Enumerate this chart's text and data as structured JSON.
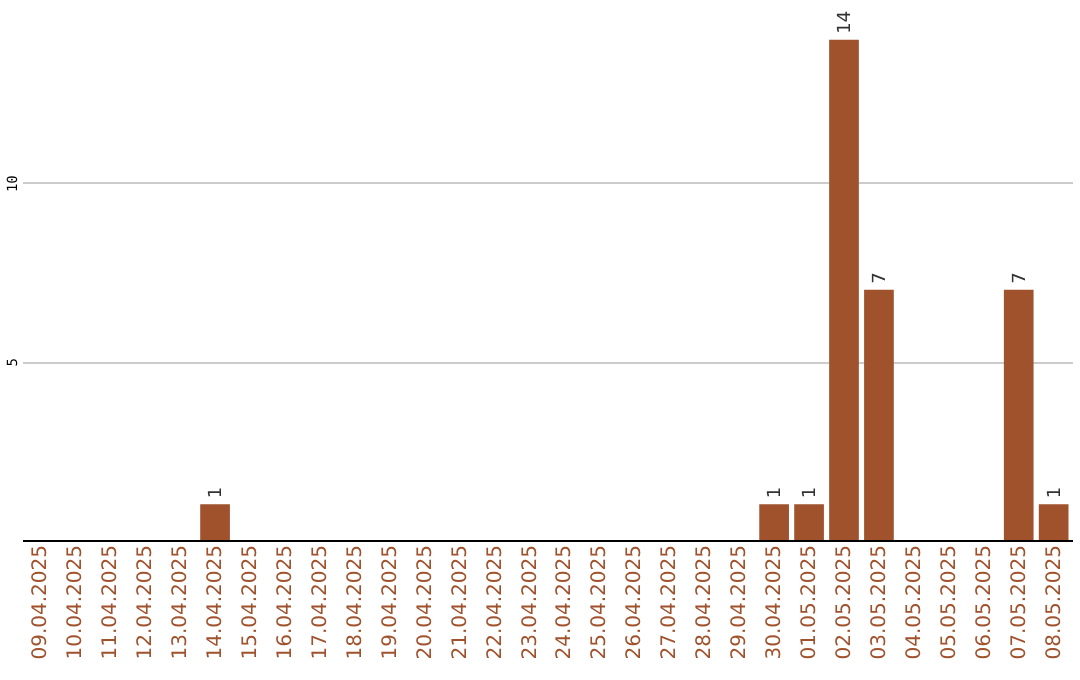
{
  "chart_data": {
    "type": "bar",
    "categories": [
      "09.04.2025",
      "10.04.2025",
      "11.04.2025",
      "12.04.2025",
      "13.04.2025",
      "14.04.2025",
      "15.04.2025",
      "16.04.2025",
      "17.04.2025",
      "18.04.2025",
      "19.04.2025",
      "20.04.2025",
      "21.04.2025",
      "22.04.2025",
      "23.04.2025",
      "24.04.2025",
      "25.04.2025",
      "26.04.2025",
      "27.04.2025",
      "28.04.2025",
      "29.04.2025",
      "30.04.2025",
      "01.05.2025",
      "02.05.2025",
      "03.05.2025",
      "04.05.2025",
      "05.05.2025",
      "06.05.2025",
      "07.05.2025",
      "08.05.2025"
    ],
    "values": [
      0,
      0,
      0,
      0,
      0,
      1,
      0,
      0,
      0,
      0,
      0,
      0,
      0,
      0,
      0,
      0,
      0,
      0,
      0,
      0,
      0,
      1,
      1,
      14,
      7,
      0,
      0,
      0,
      7,
      1
    ],
    "value_labels": [
      null,
      null,
      null,
      null,
      null,
      "1",
      null,
      null,
      null,
      null,
      null,
      null,
      null,
      null,
      null,
      null,
      null,
      null,
      null,
      null,
      null,
      "1",
      "1",
      "14",
      "7",
      null,
      null,
      null,
      "7",
      "1"
    ],
    "color": "#a0522d",
    "ylim": [
      0,
      15
    ],
    "yticks": [
      5,
      10
    ],
    "grid": "y"
  }
}
